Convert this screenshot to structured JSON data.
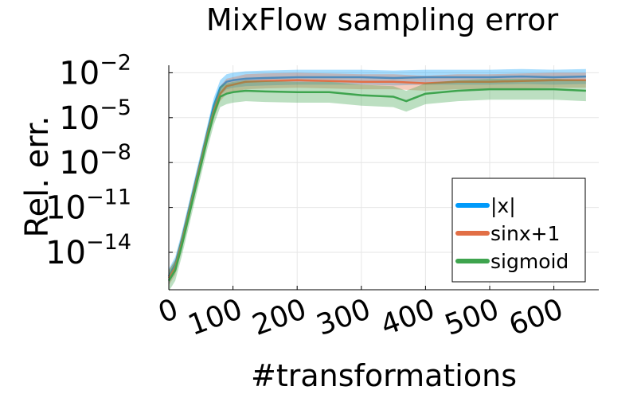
{
  "chart_data": {
    "type": "line",
    "title": "MixFlow sampling error",
    "xlabel": "#transformations",
    "ylabel": "Rel. err.",
    "x_range": [
      0,
      670
    ],
    "y_scale": "log10",
    "y_range_exponent": [
      -16.5,
      -1.5
    ],
    "x_ticks": [
      0,
      100,
      200,
      300,
      400,
      500,
      600
    ],
    "x_tick_labels": [
      "0",
      "100",
      "200",
      "300",
      "400",
      "500",
      "600"
    ],
    "y_tick_labels": [
      {
        "base": "10",
        "exp": "−2",
        "value_exp": -2
      },
      {
        "base": "10",
        "exp": "−5",
        "value_exp": -5
      },
      {
        "base": "10",
        "exp": "−8",
        "value_exp": -8
      },
      {
        "base": "10",
        "exp": "−11",
        "value_exp": -11
      },
      {
        "base": "10",
        "exp": "−14",
        "value_exp": -14
      }
    ],
    "grid": true,
    "legend_position": "bottom-right",
    "series": [
      {
        "name": "|x|",
        "color": "#009AFA",
        "x": [
          0,
          10,
          20,
          30,
          40,
          50,
          60,
          70,
          80,
          90,
          100,
          120,
          150,
          200,
          250,
          300,
          350,
          400,
          450,
          500,
          550,
          600,
          650
        ],
        "log10_y": [
          -15.6,
          -14.8,
          -13.2,
          -11.4,
          -9.6,
          -7.8,
          -6.0,
          -4.2,
          -3.0,
          -2.6,
          -2.5,
          -2.4,
          -2.35,
          -2.3,
          -2.3,
          -2.3,
          -2.35,
          -2.3,
          -2.3,
          -2.3,
          -2.25,
          -2.3,
          -2.25
        ],
        "band": 0.5
      },
      {
        "name": "sinx+1",
        "color": "#E26F46",
        "x": [
          0,
          10,
          20,
          30,
          40,
          50,
          60,
          70,
          80,
          90,
          100,
          120,
          150,
          200,
          250,
          300,
          350,
          400,
          450,
          500,
          550,
          600,
          650
        ],
        "log10_y": [
          -15.7,
          -15.0,
          -13.4,
          -11.6,
          -9.8,
          -8.0,
          -6.2,
          -4.6,
          -3.4,
          -2.9,
          -2.8,
          -2.6,
          -2.55,
          -2.5,
          -2.55,
          -2.6,
          -2.6,
          -2.7,
          -2.6,
          -2.6,
          -2.55,
          -2.5,
          -2.5
        ],
        "band": 0.5
      },
      {
        "name": "sigmoid",
        "color": "#3EA44E",
        "x": [
          0,
          10,
          20,
          30,
          40,
          50,
          60,
          70,
          80,
          90,
          100,
          120,
          150,
          200,
          250,
          300,
          350,
          370,
          400,
          450,
          500,
          550,
          600,
          650
        ],
        "log10_y": [
          -15.9,
          -15.2,
          -13.6,
          -11.8,
          -10.0,
          -8.2,
          -6.4,
          -4.8,
          -3.6,
          -3.4,
          -3.3,
          -3.2,
          -3.25,
          -3.3,
          -3.3,
          -3.5,
          -3.6,
          -3.9,
          -3.4,
          -3.2,
          -3.1,
          -3.1,
          -3.1,
          -3.2
        ],
        "band": 0.7
      }
    ]
  }
}
